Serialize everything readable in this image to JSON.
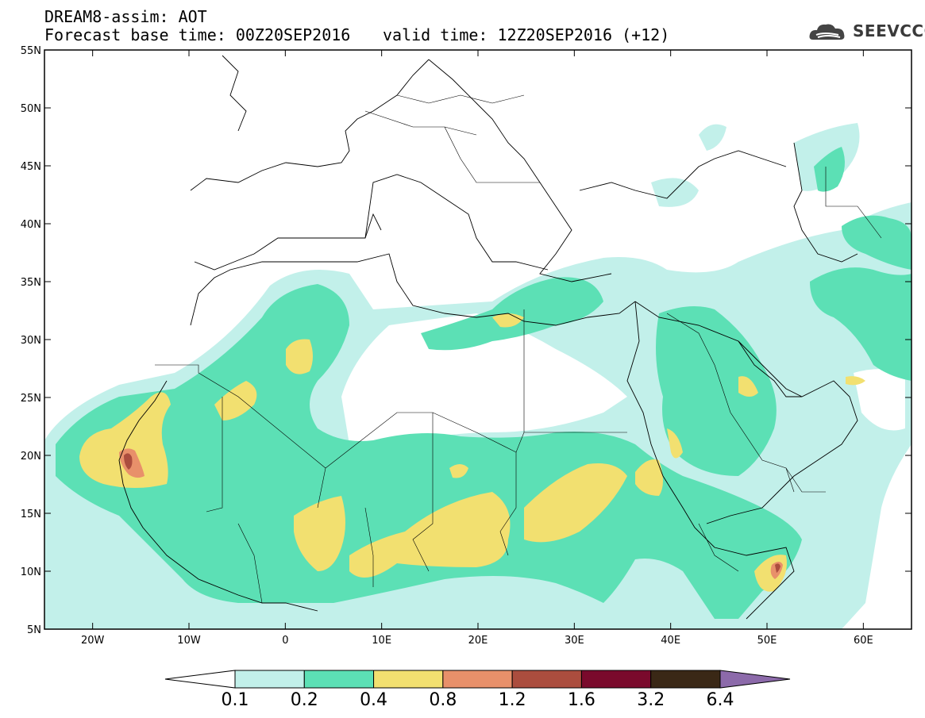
{
  "header": {
    "title": "DREAM8-assim: AOT",
    "forecast": "Forecast base time: 00Z20SEP2016",
    "valid": "valid time: 12Z20SEP2016 (+12)"
  },
  "logo": {
    "text": "SEEVCCC",
    "icon": "cloud-logo-icon"
  },
  "map": {
    "lon_range": [
      -25,
      65
    ],
    "lat_range": [
      5,
      55
    ],
    "lon_ticks": [
      {
        "lon": -20,
        "label": "20W"
      },
      {
        "lon": -10,
        "label": "10W"
      },
      {
        "lon": 0,
        "label": "0"
      },
      {
        "lon": 10,
        "label": "10E"
      },
      {
        "lon": 20,
        "label": "20E"
      },
      {
        "lon": 30,
        "label": "30E"
      },
      {
        "lon": 40,
        "label": "40E"
      },
      {
        "lon": 50,
        "label": "50E"
      },
      {
        "lon": 60,
        "label": "60E"
      }
    ],
    "lat_ticks": [
      {
        "lat": 5,
        "label": "5N"
      },
      {
        "lat": 10,
        "label": "10N"
      },
      {
        "lat": 15,
        "label": "15N"
      },
      {
        "lat": 20,
        "label": "20N"
      },
      {
        "lat": 25,
        "label": "25N"
      },
      {
        "lat": 30,
        "label": "30N"
      },
      {
        "lat": 35,
        "label": "35N"
      },
      {
        "lat": 40,
        "label": "40N"
      },
      {
        "lat": 45,
        "label": "45N"
      },
      {
        "lat": 50,
        "label": "50N"
      },
      {
        "lat": 55,
        "label": "55N"
      }
    ]
  },
  "colorbar": {
    "levels": [
      "0.1",
      "0.2",
      "0.4",
      "0.8",
      "1.2",
      "1.6",
      "3.2",
      "6.4"
    ],
    "colors": [
      "#ffffff",
      "#c2f0ea",
      "#5ce0b5",
      "#f2e070",
      "#e8906a",
      "#ab4d3e",
      "#7a0a2c",
      "#3a2816",
      "#8c6aaa"
    ]
  }
}
